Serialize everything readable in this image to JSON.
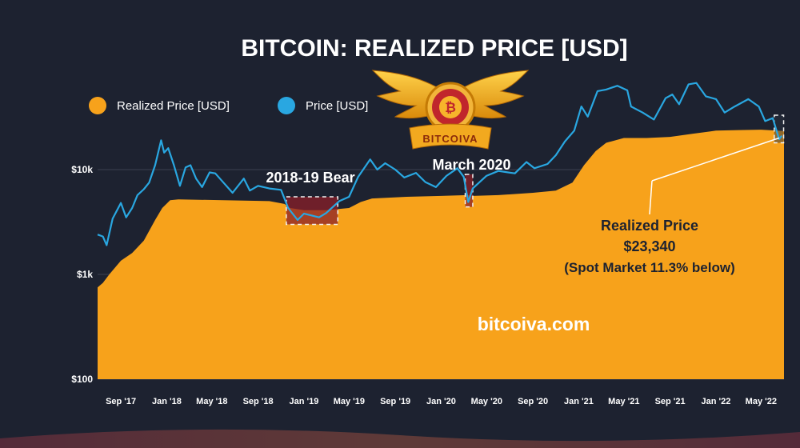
{
  "colors": {
    "background": "#1d2230",
    "realized": "#f7a21b",
    "price": "#29a7e1",
    "grid": "#3a4050",
    "highlight_box": "#f2f2f2"
  },
  "logo": {
    "text": "BITCOIVA",
    "icon": "bitcoin-wings-logo-icon"
  },
  "chart_data": {
    "type": "area",
    "title": "BITCOIN: REALIZED PRICE [USD]",
    "legend": [
      {
        "name": "Realized Price [USD]",
        "color": "#f7a21b",
        "marker": "circle"
      },
      {
        "name": "Price [USD]",
        "color": "#29a7e1",
        "marker": "circle"
      }
    ],
    "legend_position": "top-left",
    "y_scale": "log",
    "ylim": [
      100,
      60000
    ],
    "y_ticks": [
      {
        "value": 100,
        "label": "$100"
      },
      {
        "value": 1000,
        "label": "$1k"
      },
      {
        "value": 10000,
        "label": "$10k"
      }
    ],
    "x_range": [
      "2017-07-01",
      "2022-07-01"
    ],
    "x_ticks": [
      {
        "date": "2017-09-01",
        "label": "Sep '17"
      },
      {
        "date": "2018-01-01",
        "label": "Jan '18"
      },
      {
        "date": "2018-05-01",
        "label": "May '18"
      },
      {
        "date": "2018-09-01",
        "label": "Sep '18"
      },
      {
        "date": "2019-01-01",
        "label": "Jan '19"
      },
      {
        "date": "2019-05-01",
        "label": "May '19"
      },
      {
        "date": "2019-09-01",
        "label": "Sep '19"
      },
      {
        "date": "2020-01-01",
        "label": "Jan '20"
      },
      {
        "date": "2020-05-01",
        "label": "May '20"
      },
      {
        "date": "2020-09-01",
        "label": "Sep '20"
      },
      {
        "date": "2021-01-01",
        "label": "Jan '21"
      },
      {
        "date": "2021-05-01",
        "label": "May '21"
      },
      {
        "date": "2021-09-01",
        "label": "Sep '21"
      },
      {
        "date": "2022-01-01",
        "label": "Jan '22"
      },
      {
        "date": "2022-05-01",
        "label": "May '22"
      }
    ],
    "grid": {
      "horizontal": true,
      "vertical": false
    },
    "series": [
      {
        "name": "Realized Price [USD]",
        "kind": "area",
        "points": [
          [
            "2017-07-01",
            750
          ],
          [
            "2017-07-15",
            830
          ],
          [
            "2017-08-01",
            1000
          ],
          [
            "2017-09-01",
            1350
          ],
          [
            "2017-10-01",
            1600
          ],
          [
            "2017-11-01",
            2100
          ],
          [
            "2017-12-01",
            3300
          ],
          [
            "2017-12-20",
            4300
          ],
          [
            "2018-01-10",
            5100
          ],
          [
            "2018-02-01",
            5200
          ],
          [
            "2018-06-01",
            5100
          ],
          [
            "2018-10-01",
            5000
          ],
          [
            "2018-11-10",
            4700
          ],
          [
            "2018-11-25",
            4300
          ],
          [
            "2019-01-01",
            4100
          ],
          [
            "2019-03-01",
            4100
          ],
          [
            "2019-05-01",
            4300
          ],
          [
            "2019-06-01",
            4900
          ],
          [
            "2019-07-01",
            5300
          ],
          [
            "2019-10-01",
            5500
          ],
          [
            "2020-01-01",
            5600
          ],
          [
            "2020-03-10",
            5700
          ],
          [
            "2020-03-25",
            5600
          ],
          [
            "2020-06-01",
            5700
          ],
          [
            "2020-09-01",
            6000
          ],
          [
            "2020-11-01",
            6300
          ],
          [
            "2020-12-15",
            7500
          ],
          [
            "2021-01-15",
            11000
          ],
          [
            "2021-02-15",
            15000
          ],
          [
            "2021-03-15",
            18000
          ],
          [
            "2021-05-01",
            20000
          ],
          [
            "2021-07-01",
            20000
          ],
          [
            "2021-09-01",
            20500
          ],
          [
            "2021-11-01",
            22000
          ],
          [
            "2022-01-01",
            23500
          ],
          [
            "2022-03-01",
            23800
          ],
          [
            "2022-05-01",
            24000
          ],
          [
            "2022-07-01",
            23300
          ]
        ]
      },
      {
        "name": "Price [USD]",
        "kind": "line",
        "points": [
          [
            "2017-07-01",
            2400
          ],
          [
            "2017-07-15",
            2300
          ],
          [
            "2017-07-25",
            1900
          ],
          [
            "2017-08-10",
            3400
          ],
          [
            "2017-09-01",
            4800
          ],
          [
            "2017-09-15",
            3500
          ],
          [
            "2017-10-01",
            4300
          ],
          [
            "2017-10-15",
            5700
          ],
          [
            "2017-11-01",
            6500
          ],
          [
            "2017-11-15",
            7500
          ],
          [
            "2017-12-01",
            11000
          ],
          [
            "2017-12-17",
            19000
          ],
          [
            "2017-12-25",
            14500
          ],
          [
            "2018-01-05",
            16000
          ],
          [
            "2018-01-20",
            11000
          ],
          [
            "2018-02-05",
            7000
          ],
          [
            "2018-02-20",
            10500
          ],
          [
            "2018-03-05",
            11000
          ],
          [
            "2018-03-20",
            8200
          ],
          [
            "2018-04-05",
            6800
          ],
          [
            "2018-04-25",
            9400
          ],
          [
            "2018-05-10",
            9200
          ],
          [
            "2018-06-01",
            7500
          ],
          [
            "2018-06-25",
            6000
          ],
          [
            "2018-07-25",
            8200
          ],
          [
            "2018-08-10",
            6300
          ],
          [
            "2018-09-01",
            7000
          ],
          [
            "2018-10-01",
            6600
          ],
          [
            "2018-11-01",
            6400
          ],
          [
            "2018-11-20",
            4300
          ],
          [
            "2018-12-15",
            3300
          ],
          [
            "2019-01-01",
            3800
          ],
          [
            "2019-02-10",
            3500
          ],
          [
            "2019-03-01",
            3850
          ],
          [
            "2019-04-05",
            5000
          ],
          [
            "2019-05-01",
            5500
          ],
          [
            "2019-05-25",
            8500
          ],
          [
            "2019-06-26",
            12500
          ],
          [
            "2019-07-15",
            10000
          ],
          [
            "2019-08-05",
            11500
          ],
          [
            "2019-09-01",
            10000
          ],
          [
            "2019-09-25",
            8400
          ],
          [
            "2019-10-26",
            9300
          ],
          [
            "2019-11-20",
            7600
          ],
          [
            "2019-12-18",
            6800
          ],
          [
            "2020-01-15",
            8700
          ],
          [
            "2020-02-13",
            10300
          ],
          [
            "2020-03-01",
            8500
          ],
          [
            "2020-03-13",
            4900
          ],
          [
            "2020-03-25",
            6600
          ],
          [
            "2020-04-30",
            8700
          ],
          [
            "2020-06-01",
            9700
          ],
          [
            "2020-07-15",
            9200
          ],
          [
            "2020-08-15",
            11800
          ],
          [
            "2020-09-05",
            10300
          ],
          [
            "2020-10-10",
            11300
          ],
          [
            "2020-11-01",
            13700
          ],
          [
            "2020-11-25",
            18500
          ],
          [
            "2020-12-20",
            23500
          ],
          [
            "2021-01-08",
            40000
          ],
          [
            "2021-01-25",
            32000
          ],
          [
            "2021-02-20",
            56000
          ],
          [
            "2021-03-15",
            58000
          ],
          [
            "2021-04-14",
            63000
          ],
          [
            "2021-05-10",
            57000
          ],
          [
            "2021-05-20",
            40000
          ],
          [
            "2021-06-20",
            35000
          ],
          [
            "2021-07-20",
            30000
          ],
          [
            "2021-08-20",
            48000
          ],
          [
            "2021-09-07",
            52000
          ],
          [
            "2021-09-25",
            42000
          ],
          [
            "2021-10-20",
            65000
          ],
          [
            "2021-11-10",
            67000
          ],
          [
            "2021-12-05",
            50000
          ],
          [
            "2022-01-01",
            47000
          ],
          [
            "2022-01-24",
            35000
          ],
          [
            "2022-02-20",
            40000
          ],
          [
            "2022-03-28",
            47000
          ],
          [
            "2022-04-25",
            40000
          ],
          [
            "2022-05-12",
            29000
          ],
          [
            "2022-06-01",
            31000
          ],
          [
            "2022-06-18",
            19500
          ],
          [
            "2022-06-25",
            21000
          ]
        ]
      }
    ],
    "annotations": [
      {
        "text": "2018-19 Bear",
        "box_x": [
          "2018-11-15",
          "2019-04-01"
        ],
        "box_y": [
          3000,
          5500
        ]
      },
      {
        "text": "March 2020",
        "box_x": [
          "2020-03-05",
          "2020-03-25"
        ],
        "box_y": [
          4400,
          9000
        ]
      },
      {
        "box_x": [
          "2022-06-05",
          "2022-06-30"
        ],
        "box_y": [
          18000,
          33000
        ]
      }
    ],
    "callout": {
      "title": "Realized Price",
      "value": "$23,340",
      "note": "(Spot Market 11.3% below)",
      "target_date": "2022-06-18",
      "target_value": 20000
    },
    "watermark": "bitcoiva.com"
  }
}
